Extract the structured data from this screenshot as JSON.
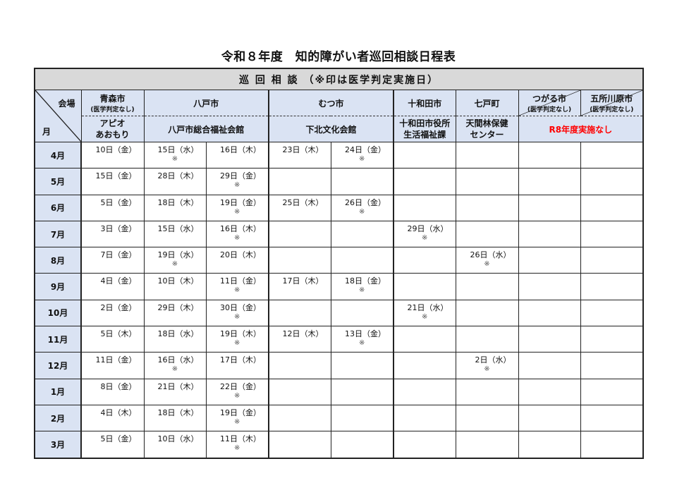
{
  "title": "令和８年度　知的障がい者巡回相談日程表",
  "band": "巡 回 相 談 （※印は医学判定実施日）",
  "corner": {
    "venue": "会場",
    "month": "月"
  },
  "headers": {
    "aomori": {
      "city": "青森市",
      "note": "(医学判定なし)",
      "venue": "アピオ\nあおもり"
    },
    "hachinohe": {
      "city": "八戸市",
      "venue": "八戸市総合福祉会館"
    },
    "mutsu": {
      "city": "むつ市",
      "venue": "下北文化会館"
    },
    "towada": {
      "city": "十和田市",
      "venue": "十和田市役所\n生活福祉課"
    },
    "shichinohe": {
      "city": "七戸町",
      "venue": "天間林保健\nセンター"
    },
    "tsugaru": {
      "city": "つがる市",
      "note": "(医学判定なし)"
    },
    "goshogawara": {
      "city": "五所川原市",
      "note": "(医学判定なし)"
    },
    "not_held": "R8年度実施なし"
  },
  "colors": {
    "header_bg": "#dae3f3",
    "band_bg": "#d9d9d9",
    "not_held": "#ff0000"
  },
  "rows": [
    {
      "month": "4月",
      "cells": [
        {
          "d": "10日（金）",
          "m": ""
        },
        {
          "d": "15日（水）",
          "m": "※"
        },
        {
          "d": "16日（木）",
          "m": ""
        },
        {
          "d": "23日（木）",
          "m": ""
        },
        {
          "d": "24日（金）",
          "m": "※"
        },
        {
          "d": "",
          "m": ""
        },
        {
          "d": "",
          "m": ""
        },
        {
          "d": "",
          "m": ""
        },
        {
          "d": "",
          "m": ""
        }
      ]
    },
    {
      "month": "5月",
      "cells": [
        {
          "d": "15日（金）",
          "m": ""
        },
        {
          "d": "28日（木）",
          "m": ""
        },
        {
          "d": "29日（金）",
          "m": "※"
        },
        {
          "d": "",
          "m": ""
        },
        {
          "d": "",
          "m": ""
        },
        {
          "d": "",
          "m": ""
        },
        {
          "d": "",
          "m": ""
        },
        {
          "d": "",
          "m": ""
        },
        {
          "d": "",
          "m": ""
        }
      ]
    },
    {
      "month": "6月",
      "cells": [
        {
          "d": "5日（金）",
          "m": ""
        },
        {
          "d": "18日（木）",
          "m": ""
        },
        {
          "d": "19日（金）",
          "m": "※"
        },
        {
          "d": "25日（木）",
          "m": ""
        },
        {
          "d": "26日（金）",
          "m": "※"
        },
        {
          "d": "",
          "m": ""
        },
        {
          "d": "",
          "m": ""
        },
        {
          "d": "",
          "m": ""
        },
        {
          "d": "",
          "m": ""
        }
      ]
    },
    {
      "month": "7月",
      "cells": [
        {
          "d": "3日（金）",
          "m": ""
        },
        {
          "d": "15日（水）",
          "m": ""
        },
        {
          "d": "16日（木）",
          "m": "※"
        },
        {
          "d": "",
          "m": ""
        },
        {
          "d": "",
          "m": ""
        },
        {
          "d": "29日（水）",
          "m": "※"
        },
        {
          "d": "",
          "m": ""
        },
        {
          "d": "",
          "m": ""
        },
        {
          "d": "",
          "m": ""
        }
      ]
    },
    {
      "month": "8月",
      "cells": [
        {
          "d": "7日（金）",
          "m": ""
        },
        {
          "d": "19日（水）",
          "m": "※"
        },
        {
          "d": "20日（木）",
          "m": ""
        },
        {
          "d": "",
          "m": ""
        },
        {
          "d": "",
          "m": ""
        },
        {
          "d": "",
          "m": ""
        },
        {
          "d": "26日（水）",
          "m": "※"
        },
        {
          "d": "",
          "m": ""
        },
        {
          "d": "",
          "m": ""
        }
      ]
    },
    {
      "month": "9月",
      "cells": [
        {
          "d": "4日（金）",
          "m": ""
        },
        {
          "d": "10日（木）",
          "m": ""
        },
        {
          "d": "11日（金）",
          "m": "※"
        },
        {
          "d": "17日（木）",
          "m": ""
        },
        {
          "d": "18日（金）",
          "m": "※"
        },
        {
          "d": "",
          "m": ""
        },
        {
          "d": "",
          "m": ""
        },
        {
          "d": "",
          "m": ""
        },
        {
          "d": "",
          "m": ""
        }
      ]
    },
    {
      "month": "10月",
      "cells": [
        {
          "d": "2日（金）",
          "m": ""
        },
        {
          "d": "29日（木）",
          "m": ""
        },
        {
          "d": "30日（金）",
          "m": "※"
        },
        {
          "d": "",
          "m": ""
        },
        {
          "d": "",
          "m": ""
        },
        {
          "d": "21日（水）",
          "m": "※"
        },
        {
          "d": "",
          "m": ""
        },
        {
          "d": "",
          "m": ""
        },
        {
          "d": "",
          "m": ""
        }
      ]
    },
    {
      "month": "11月",
      "cells": [
        {
          "d": "5日（木）",
          "m": ""
        },
        {
          "d": "18日（水）",
          "m": ""
        },
        {
          "d": "19日（木）",
          "m": "※"
        },
        {
          "d": "12日（木）",
          "m": ""
        },
        {
          "d": "13日（金）",
          "m": "※"
        },
        {
          "d": "",
          "m": ""
        },
        {
          "d": "",
          "m": ""
        },
        {
          "d": "",
          "m": ""
        },
        {
          "d": "",
          "m": ""
        }
      ]
    },
    {
      "month": "12月",
      "cells": [
        {
          "d": "11日（金）",
          "m": ""
        },
        {
          "d": "16日（水）",
          "m": "※"
        },
        {
          "d": "17日（木）",
          "m": ""
        },
        {
          "d": "",
          "m": ""
        },
        {
          "d": "",
          "m": ""
        },
        {
          "d": "",
          "m": ""
        },
        {
          "d": "2日（水）",
          "m": "※"
        },
        {
          "d": "",
          "m": ""
        },
        {
          "d": "",
          "m": ""
        }
      ]
    },
    {
      "month": "1月",
      "cells": [
        {
          "d": "8日（金）",
          "m": ""
        },
        {
          "d": "21日（木）",
          "m": ""
        },
        {
          "d": "22日（金）",
          "m": "※"
        },
        {
          "d": "",
          "m": ""
        },
        {
          "d": "",
          "m": ""
        },
        {
          "d": "",
          "m": ""
        },
        {
          "d": "",
          "m": ""
        },
        {
          "d": "",
          "m": ""
        },
        {
          "d": "",
          "m": ""
        }
      ]
    },
    {
      "month": "2月",
      "cells": [
        {
          "d": "4日（木）",
          "m": ""
        },
        {
          "d": "18日（木）",
          "m": ""
        },
        {
          "d": "19日（金）",
          "m": "※"
        },
        {
          "d": "",
          "m": ""
        },
        {
          "d": "",
          "m": ""
        },
        {
          "d": "",
          "m": ""
        },
        {
          "d": "",
          "m": ""
        },
        {
          "d": "",
          "m": ""
        },
        {
          "d": "",
          "m": ""
        }
      ]
    },
    {
      "month": "3月",
      "cells": [
        {
          "d": "5日（金）",
          "m": ""
        },
        {
          "d": "10日（水）",
          "m": ""
        },
        {
          "d": "11日（木）",
          "m": "※"
        },
        {
          "d": "",
          "m": ""
        },
        {
          "d": "",
          "m": ""
        },
        {
          "d": "",
          "m": ""
        },
        {
          "d": "",
          "m": ""
        },
        {
          "d": "",
          "m": ""
        },
        {
          "d": "",
          "m": ""
        }
      ]
    }
  ]
}
